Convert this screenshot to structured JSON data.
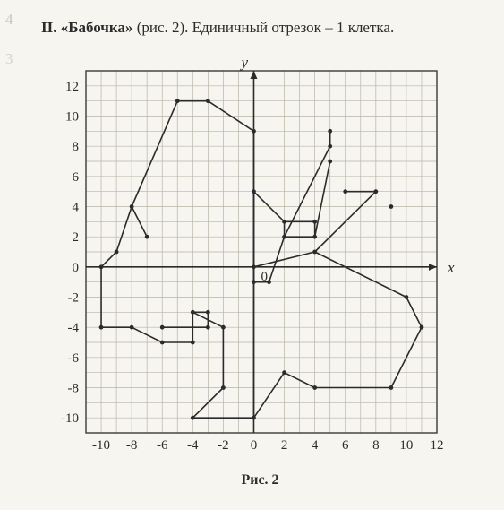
{
  "heading": {
    "prefix": "II.",
    "title_quoted": "«Бабочка»",
    "paren": "(рис. 2).",
    "rest": "Единичный отрезок – 1 клетка."
  },
  "left_margin_numbers": {
    "a": "4",
    "b": "3"
  },
  "caption": "Рис. 2",
  "chart": {
    "type": "line",
    "xlim": [
      -11,
      12
    ],
    "ylim": [
      -11,
      13
    ],
    "xtick_start": -10,
    "xtick_end": 12,
    "xtick_step": 2,
    "ytick_start": -10,
    "ytick_end": 12,
    "ytick_step": 2,
    "grid_minor_step": 1,
    "origin_label": "0",
    "xlabel": "x",
    "ylabel": "y",
    "label_fontsize": 17,
    "tick_fontsize": 15,
    "background_color": "#f7f5ef",
    "grid_color": "#b8b3a6",
    "border_color": "#3a3a3a",
    "axis_color": "#2b2b2b",
    "line_color": "#2b2b2b",
    "point_color": "#2b2b2b",
    "line_width": 1.6,
    "point_radius": 2.4,
    "polylines": [
      [
        [
          0,
          0
        ],
        [
          0,
          9
        ],
        [
          -3,
          11
        ],
        [
          -5,
          11
        ],
        [
          -8,
          4
        ],
        [
          -9,
          1
        ],
        [
          -10,
          0
        ],
        [
          -10,
          -4
        ],
        [
          -8,
          -4
        ],
        [
          -6,
          -5
        ],
        [
          -4,
          -5
        ],
        [
          -4,
          -3
        ],
        [
          -3,
          -3
        ],
        [
          -3,
          -4
        ],
        [
          -6,
          -4
        ]
      ],
      [
        [
          -4,
          -3
        ],
        [
          -2,
          -4
        ],
        [
          -2,
          -8
        ],
        [
          -4,
          -10
        ],
        [
          0,
          -10
        ],
        [
          0,
          0
        ]
      ],
      [
        [
          -7,
          2
        ],
        [
          -8,
          4
        ]
      ],
      [
        [
          0,
          -10
        ],
        [
          2,
          -7
        ],
        [
          4,
          -8
        ],
        [
          9,
          -8
        ],
        [
          11,
          -4
        ],
        [
          10,
          -2
        ],
        [
          4,
          1
        ],
        [
          0,
          0
        ]
      ],
      [
        [
          0,
          0
        ],
        [
          0,
          -1
        ],
        [
          1,
          -1
        ],
        [
          2,
          2
        ],
        [
          4,
          2
        ],
        [
          4,
          3
        ],
        [
          2,
          3
        ],
        [
          0,
          5
        ],
        [
          0,
          0
        ]
      ],
      [
        [
          2,
          2
        ],
        [
          5,
          8
        ],
        [
          5,
          9
        ]
      ],
      [
        [
          4,
          2
        ],
        [
          5,
          7
        ]
      ],
      [
        [
          4,
          1
        ],
        [
          8,
          5
        ],
        [
          6,
          5
        ]
      ],
      [
        [
          2,
          3
        ],
        [
          2,
          2
        ]
      ]
    ],
    "extra_points": [
      [
        9,
        4
      ]
    ]
  }
}
